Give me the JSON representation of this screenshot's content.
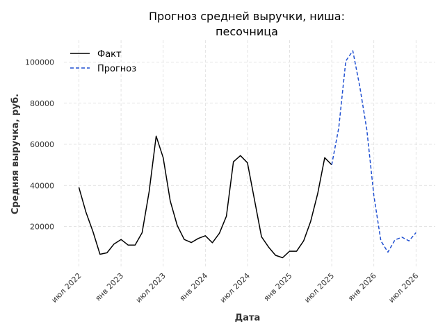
{
  "chart_data": {
    "type": "line",
    "title_line1": "Прогноз средней выручки, ниша:",
    "title_line2": "песочница",
    "xlabel": "Дата",
    "ylabel": "Средняя выручка, руб.",
    "x_ticks": [
      {
        "label": "июл 2022",
        "month": 0
      },
      {
        "label": "янв 2023",
        "month": 6
      },
      {
        "label": "июл 2023",
        "month": 12
      },
      {
        "label": "янв 2024",
        "month": 18
      },
      {
        "label": "июл 2024",
        "month": 24
      },
      {
        "label": "янв 2025",
        "month": 30
      },
      {
        "label": "июл 2025",
        "month": 36
      },
      {
        "label": "янв 2026",
        "month": 42
      },
      {
        "label": "июл 2026",
        "month": 48
      }
    ],
    "y_ticks": [
      {
        "label": "20000",
        "value": 20000
      },
      {
        "label": "40000",
        "value": 40000
      },
      {
        "label": "60000",
        "value": 60000
      },
      {
        "label": "80000",
        "value": 80000
      },
      {
        "label": "100000",
        "value": 100000
      }
    ],
    "xlim": [
      "2022-05",
      "2026-08"
    ],
    "ylim": [
      0,
      110000
    ],
    "grid": true,
    "legend_position": "top-left",
    "series": [
      {
        "name": "Факт",
        "style": "solid",
        "color": "#000000",
        "x": [
          "2022-07",
          "2022-08",
          "2022-09",
          "2022-10",
          "2022-11",
          "2022-12",
          "2023-01",
          "2023-02",
          "2023-03",
          "2023-04",
          "2023-05",
          "2023-06",
          "2023-07",
          "2023-08",
          "2023-09",
          "2023-10",
          "2023-11",
          "2023-12",
          "2024-01",
          "2024-02",
          "2024-03",
          "2024-04",
          "2024-05",
          "2024-06",
          "2024-07",
          "2024-08",
          "2024-09",
          "2024-10",
          "2024-11",
          "2024-12",
          "2025-01",
          "2025-02",
          "2025-03",
          "2025-04",
          "2025-05",
          "2025-06",
          "2025-07"
        ],
        "values": [
          39000,
          27000,
          17500,
          6500,
          7200,
          11500,
          13700,
          11000,
          11000,
          17000,
          37000,
          64000,
          53500,
          32500,
          20500,
          13700,
          12200,
          14200,
          15500,
          12100,
          16700,
          25000,
          51500,
          54500,
          51000,
          33000,
          15000,
          10000,
          6000,
          4800,
          8000,
          8000,
          13000,
          22500,
          36000,
          53500,
          50000
        ]
      },
      {
        "name": "Прогноз",
        "style": "dashed",
        "color": "#1f4fd1",
        "x": [
          "2025-07",
          "2025-08",
          "2025-09",
          "2025-10",
          "2025-11",
          "2025-12",
          "2026-01",
          "2026-02",
          "2026-03",
          "2026-04",
          "2026-05",
          "2026-06",
          "2026-07"
        ],
        "values": [
          50000,
          68000,
          100500,
          105500,
          88000,
          67000,
          35000,
          13000,
          7500,
          13500,
          14800,
          13000,
          17000
        ]
      }
    ]
  }
}
